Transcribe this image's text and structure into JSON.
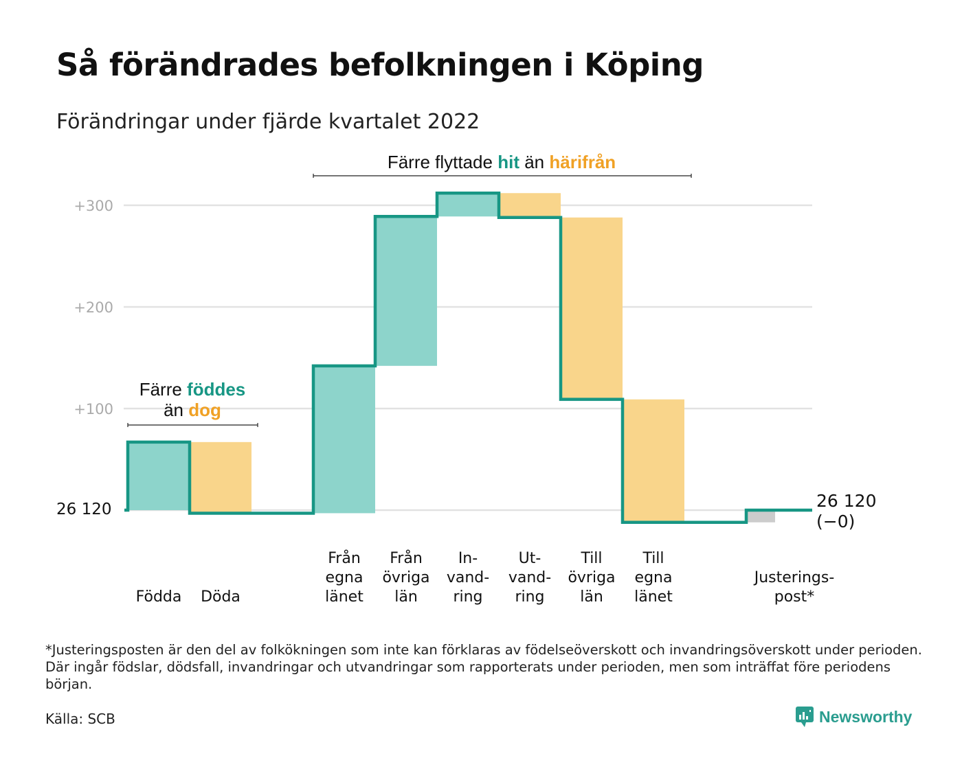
{
  "title": "Så förändrades befolkningen i Köping",
  "subtitle": "Förändringar under fjärde kvartalet 2022",
  "colors": {
    "increase": "#8dd4cb",
    "decrease": "#f9d58b",
    "line": "#179684",
    "adjustment": "#cccccc",
    "teal_text": "#179684",
    "orange_text": "#f0a125",
    "grid": "#e2e2e2",
    "tick": "#aaaaaa"
  },
  "annotations": {
    "births": {
      "prefix": "Färre ",
      "word1": "föddes",
      "line2_prefix": "än ",
      "word2": "dog"
    },
    "moves": {
      "prefix": "Färre flyttade ",
      "word1": "hit",
      "middle": " än ",
      "word2": "härifrån"
    }
  },
  "chart_data": {
    "type": "waterfall",
    "start_label": "26 120",
    "end_label_line1": "26 120",
    "end_label_line2": "(−0)",
    "y_ticks": [
      "+300",
      "+200",
      "+100"
    ],
    "y_tick_values": [
      300,
      200,
      100
    ],
    "ylim": [
      -20,
      305
    ],
    "steps": [
      {
        "label": [
          "Födda"
        ],
        "value": 67,
        "kind": "increase"
      },
      {
        "label": [
          "Döda"
        ],
        "value": -70,
        "kind": "decrease"
      },
      {
        "label": [],
        "value": 0,
        "kind": "gap"
      },
      {
        "label": [
          "Från",
          "egna",
          "länet"
        ],
        "value": 145,
        "kind": "increase"
      },
      {
        "label": [
          "Från",
          "övriga",
          "län"
        ],
        "value": 147,
        "kind": "increase"
      },
      {
        "label": [
          "In-",
          "vand-",
          "ring"
        ],
        "value": 23,
        "kind": "increase"
      },
      {
        "label": [
          "Ut-",
          "vand-",
          "ring"
        ],
        "value": -24,
        "kind": "decrease"
      },
      {
        "label": [
          "Till",
          "övriga",
          "län"
        ],
        "value": -179,
        "kind": "decrease"
      },
      {
        "label": [
          "Till",
          "egna",
          "länet"
        ],
        "value": -121,
        "kind": "decrease"
      },
      {
        "label": [],
        "value": 0,
        "kind": "gap"
      },
      {
        "label": [
          "Justerings-",
          "post*"
        ],
        "value": 12,
        "kind": "adjustment"
      }
    ]
  },
  "footnote": "*Justeringsposten är den del av folkökningen som inte kan förklaras av födelseöverskott och invandringsöverskott under perioden. Där ingår födslar, dödsfall, invandringar och utvandringar som rapporterats under perioden, men som inträffat före periodens början.",
  "source": "Källa: SCB",
  "brand": {
    "name": "Newsworthy",
    "icon": "newsworthy-logo-icon"
  }
}
